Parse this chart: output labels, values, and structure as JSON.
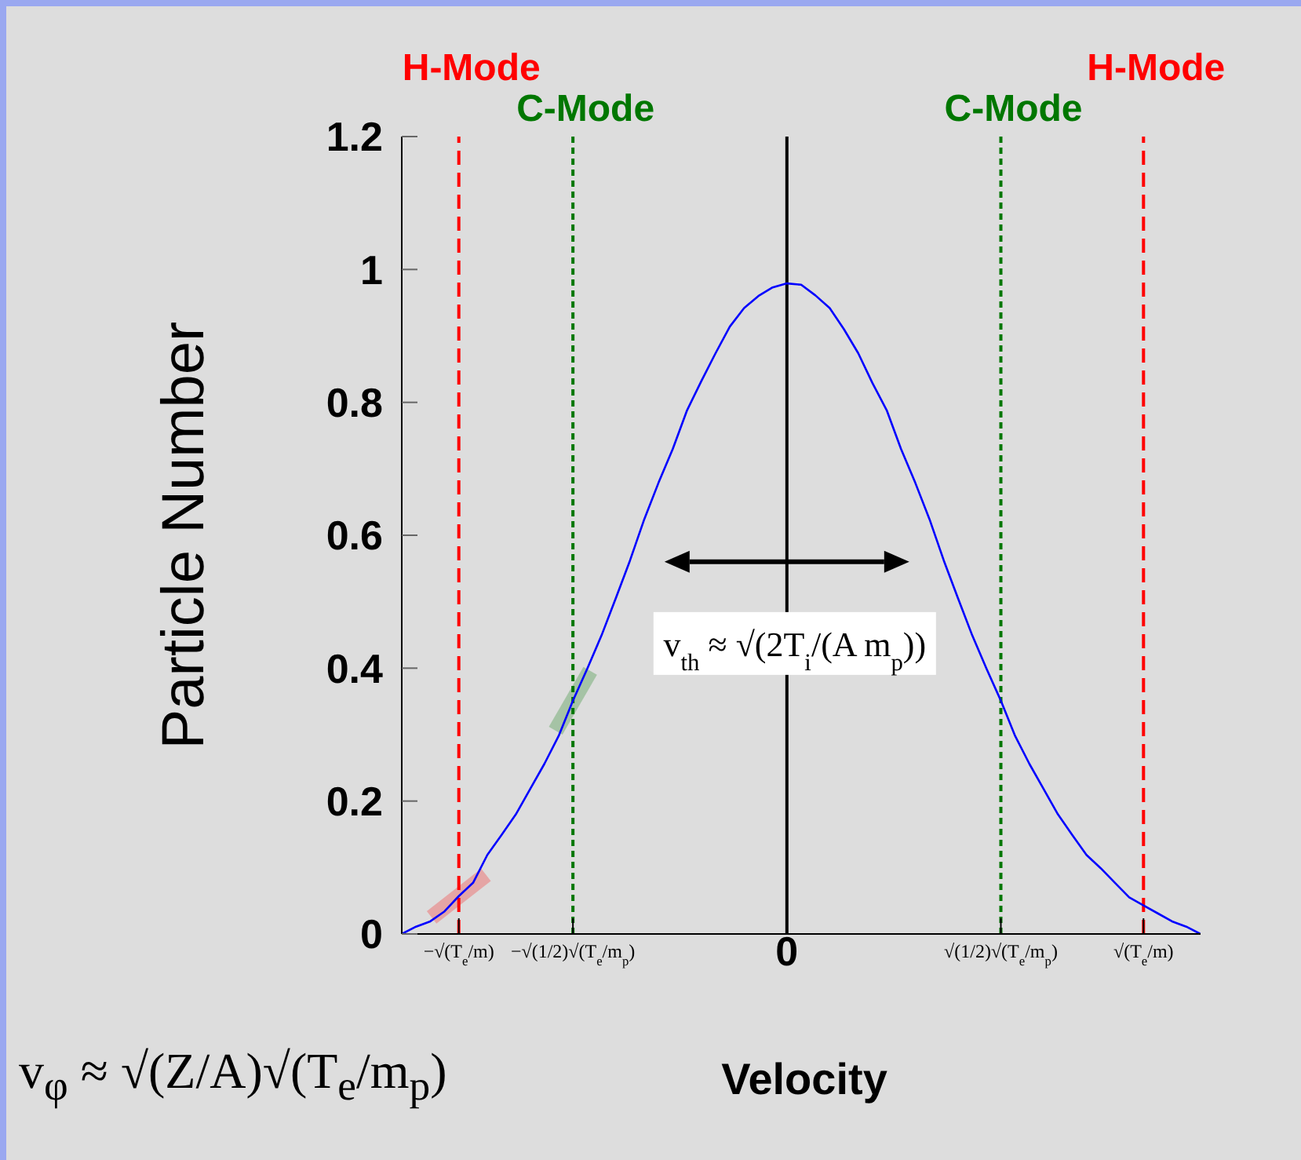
{
  "chart_data": {
    "type": "line",
    "xlabel": "Velocity",
    "ylabel": "Particle Number",
    "categories": [
      null,
      null,
      null,
      null,
      "−√(T$_{e}$/m)",
      null,
      null,
      null,
      null,
      null,
      null,
      null,
      "−√(1/2)√(T$_{e}$/m$_{p}$)",
      null,
      null,
      null,
      null,
      null,
      null,
      null,
      null,
      null,
      null,
      null,
      null,
      null,
      null,
      "0",
      null,
      null,
      null,
      null,
      null,
      null,
      null,
      null,
      null,
      null,
      null,
      null,
      null,
      null,
      "√(1/2)√(T$_{e}$/m$_{p}$)",
      null,
      null,
      null,
      null,
      null,
      null,
      null,
      null,
      null,
      "√(T$_{e}$/m)",
      null,
      null,
      null,
      null
    ],
    "ylim": [
      0,
      1.2
    ],
    "yticks": [
      0,
      0.2,
      0.4,
      0.6,
      0.8,
      1,
      1.2
    ],
    "grid": false,
    "legend": false,
    "marker": "none",
    "line_style": "solid",
    "series": [
      {
        "color": "#0000ff",
        "values": [
          0,
          0.011,
          0.019,
          0.034,
          0.057,
          0.077,
          0.119,
          0.149,
          0.18,
          0.218,
          0.256,
          0.298,
          0.351,
          0.399,
          0.449,
          0.505,
          0.562,
          0.624,
          0.679,
          0.73,
          0.788,
          0.832,
          0.874,
          0.914,
          0.942,
          0.96,
          0.973,
          0.979,
          0.977,
          0.961,
          0.942,
          0.91,
          0.874,
          0.829,
          0.788,
          0.73,
          0.679,
          0.624,
          0.562,
          0.505,
          0.449,
          0.399,
          0.351,
          0.298,
          0.256,
          0.218,
          0.18,
          0.149,
          0.119,
          0.099,
          0.077,
          0.055,
          0.043,
          0.031,
          0.019,
          0.011,
          0
        ]
      }
    ],
    "ref_lines": [
      {
        "axis": "x",
        "value": "−√(T$_{e}$/m)",
        "label": "H-Mode",
        "color": "#ff0000",
        "line_style": "dashed"
      },
      {
        "axis": "x",
        "value": "−√(1/2)√(T$_{e}$/m$_{p}$)",
        "label": "C-Mode",
        "color": "#007700",
        "line_style": "dotted"
      },
      {
        "axis": "x",
        "value": "0",
        "color": "#000000",
        "line_style": "solid"
      },
      {
        "axis": "x",
        "value": "√(1/2)√(T$_{e}$/m$_{p}$)",
        "label": "C-Mode",
        "color": "#007700",
        "line_style": "dotted"
      },
      {
        "axis": "x",
        "value": "√(T$_{e}$/m)",
        "label": "H-Mode",
        "color": "#ff0000",
        "line_style": "dashed"
      }
    ],
    "annotations": [
      {
        "text": "v$_{th}$ ≈ √(2T$_{i}$/(A m$_{p}$))",
        "x": "0",
        "y": 0.56
      },
      "v$_{φ}$ ≈ √(Z/A)√(T$_{e}$/m$_{p}$)"
    ]
  }
}
